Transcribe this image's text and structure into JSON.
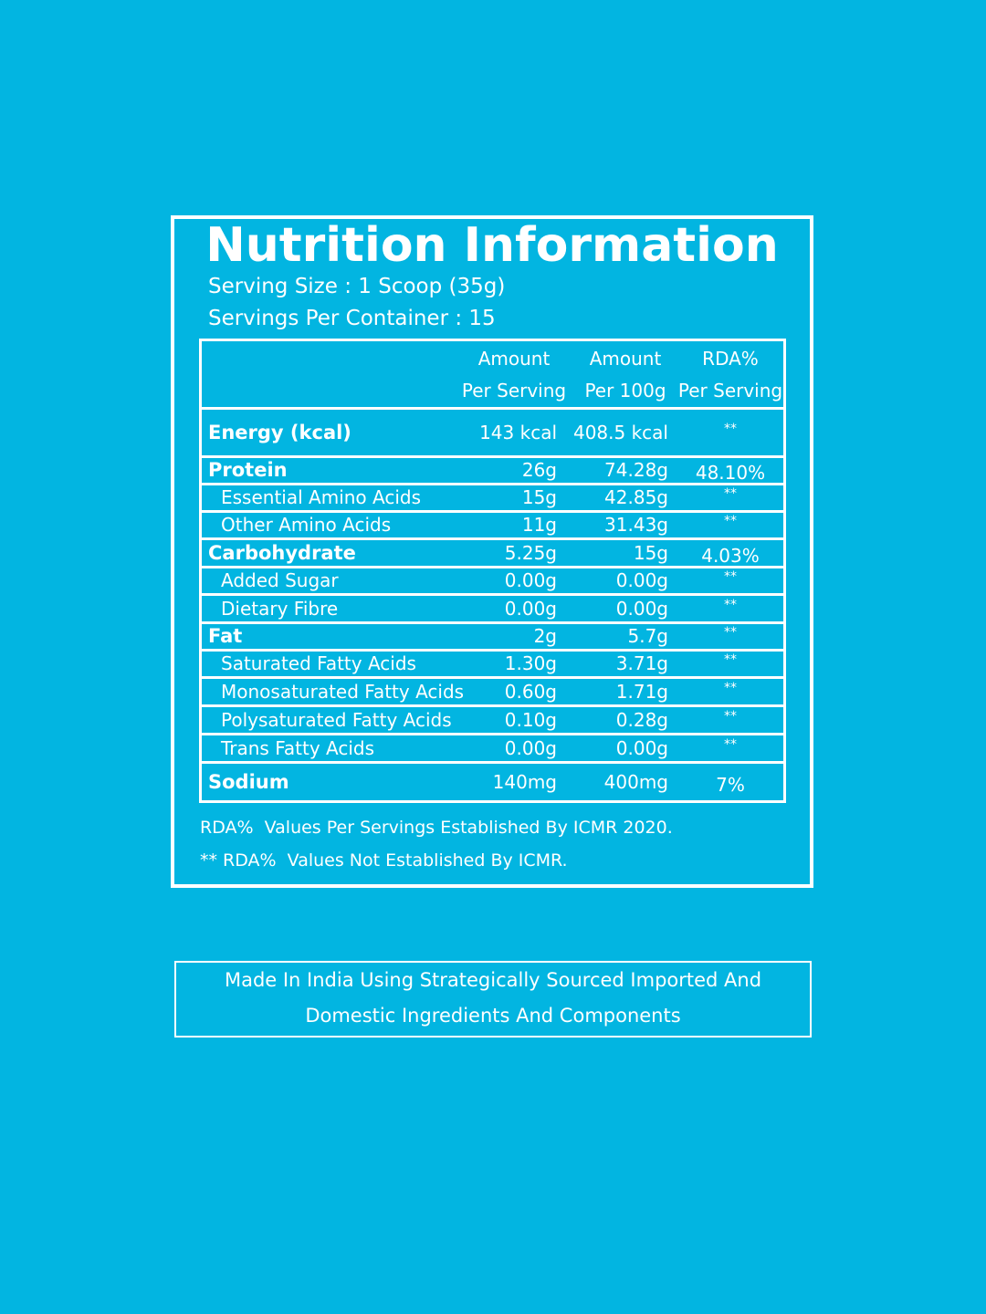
{
  "label": {
    "title": "Nutrition Information",
    "serving_size": "Serving Size : 1 Scoop (35g)",
    "servings_per_container": "Servings Per Container : 15",
    "table": {
      "header": [
        [
          "Amount",
          "Per Serving"
        ],
        [
          "Amount",
          "Per 100g"
        ],
        [
          "RDA%",
          "Per Serving"
        ]
      ],
      "rows": [
        [
          "Energy (kcal)",
          "143 kcal",
          "408.5 kcal",
          "**"
        ],
        [
          "Protein",
          "26g",
          "74.28g",
          "48.10%"
        ],
        [
          "Essential Amino Acids",
          "15g",
          "42.85g",
          "**"
        ],
        [
          "Other Amino Acids",
          "11g",
          "31.43g",
          "**"
        ],
        [
          "Carbohydrate",
          "5.25g",
          "15g",
          "4.03%"
        ],
        [
          "Added Sugar",
          "0.00g",
          "0.00g",
          "**"
        ],
        [
          "Dietary Fibre",
          "0.00g",
          "0.00g",
          "**"
        ],
        [
          "Fat",
          "2g",
          "5.7g",
          "**"
        ],
        [
          "Saturated Fatty Acids",
          "1.30g",
          "3.71g",
          "**"
        ],
        [
          "Monosaturated Fatty Acids",
          "0.60g",
          "1.71g",
          "**"
        ],
        [
          "Polysaturated Fatty Acids",
          "0.10g",
          "0.28g",
          "**"
        ],
        [
          "Trans Fatty Acids",
          "0.00g",
          "0.00g",
          "**"
        ],
        [
          "Sodium",
          "140mg",
          "400mg",
          "7%"
        ]
      ]
    },
    "footnotes": [
      "RDA%  Values Per Servings Established By ICMR 2020.",
      "** RDA%  Values Not Established By ICMR."
    ]
  },
  "origin": [
    "Made In India Using Strategically Sourced Imported And",
    "Domestic Ingredients And Components"
  ]
}
